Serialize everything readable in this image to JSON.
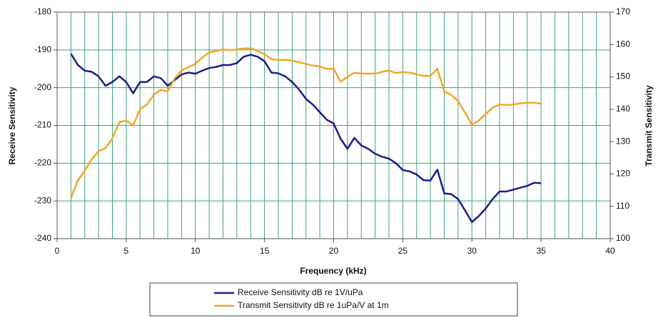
{
  "chart_data": {
    "type": "line",
    "xlabel": "Frequency (kHz)",
    "ylabel": "Receive Sensitivity",
    "y2label": "Transmit Sensitivity",
    "x": [
      1,
      1.5,
      2,
      2.5,
      3,
      3.5,
      4,
      4.5,
      5,
      5.5,
      6,
      6.5,
      7,
      7.5,
      8,
      8.5,
      9,
      9.5,
      10,
      10.5,
      11,
      11.5,
      12,
      12.5,
      13,
      13.5,
      14,
      14.5,
      15,
      15.5,
      16,
      16.5,
      17,
      17.5,
      18,
      18.5,
      19,
      19.5,
      20,
      20.5,
      21,
      21.5,
      22,
      22.5,
      23,
      23.5,
      24,
      24.5,
      25,
      25.5,
      26,
      26.5,
      27,
      27.5,
      28,
      28.5,
      29,
      29.5,
      30,
      30.5,
      31,
      31.5,
      32,
      32.5,
      33,
      33.5,
      34,
      34.5,
      35
    ],
    "series": [
      {
        "name": "Receive Sensitivity dB re 1V/uPa",
        "color": "#1c1c8c",
        "axis": "y",
        "values": [
          -191,
          -194,
          -195.5,
          -195.8,
          -197,
          -199.5,
          -198.5,
          -197,
          -198.5,
          -201.5,
          -198.5,
          -198.5,
          -197,
          -197.5,
          -199.5,
          -198,
          -196.5,
          -196,
          -196.3,
          -195.5,
          -194.8,
          -194.5,
          -194,
          -194,
          -193.5,
          -191.8,
          -191.3,
          -191.8,
          -193,
          -196,
          -196.2,
          -197,
          -198.5,
          -200.5,
          -203,
          -204.5,
          -206.5,
          -208.5,
          -209.5,
          -213.5,
          -216.2,
          -213.3,
          -215.3,
          -216.2,
          -217.5,
          -218.3,
          -218.8,
          -220,
          -221.8,
          -222.2,
          -223,
          -224.5,
          -224.6,
          -221.7,
          -228,
          -228.2,
          -229.5,
          -232.5,
          -235.6,
          -234,
          -232,
          -229.5,
          -227.5,
          -227.5,
          -227,
          -226.5,
          -226,
          -225.2,
          -225.3
        ]
      },
      {
        "name": "Transmit Sensitivity dB re 1uPa/V at 1m",
        "color": "#f5a623",
        "axis": "y2",
        "values": [
          112.5,
          118,
          121,
          124.5,
          127,
          128,
          131,
          136,
          136.5,
          135,
          140,
          141.5,
          144.5,
          146,
          145.5,
          149.5,
          152,
          153,
          154,
          156,
          157.5,
          158,
          158.5,
          158.2,
          158.5,
          158.8,
          158.8,
          158,
          157,
          155.5,
          155.2,
          155.3,
          155,
          154.5,
          154,
          153.5,
          153.2,
          152.5,
          152.5,
          148.5,
          150,
          151.3,
          151,
          151,
          151,
          151.5,
          152,
          151.2,
          151.5,
          151.3,
          150.8,
          150.3,
          150.3,
          152.5,
          145.5,
          144.5,
          142.5,
          139,
          135.2,
          136.5,
          138.5,
          140.5,
          141.5,
          141.3,
          141.5,
          141.8,
          142,
          142,
          141.7
        ]
      }
    ],
    "xlim": [
      0,
      40
    ],
    "xticks": [
      0,
      5,
      10,
      15,
      20,
      25,
      30,
      35,
      40
    ],
    "xgrid": [
      0,
      1,
      2,
      3,
      4,
      5,
      6,
      7,
      8,
      9,
      10,
      11,
      12,
      13,
      14,
      15,
      16,
      17,
      18,
      19,
      20,
      21,
      22,
      23,
      24,
      25,
      26,
      27,
      28,
      29,
      30,
      31,
      32,
      33,
      34,
      35,
      36,
      37,
      38,
      39,
      40
    ],
    "ylim": [
      -240,
      -180
    ],
    "yticks": [
      -240,
      -230,
      -220,
      -210,
      -200,
      -190,
      -180
    ],
    "y2lim": [
      100,
      170
    ],
    "y2ticks": [
      100,
      110,
      120,
      130,
      140,
      150,
      160,
      170
    ],
    "grid": true,
    "grid_color": "#3aa57a",
    "legend": "bottom"
  }
}
